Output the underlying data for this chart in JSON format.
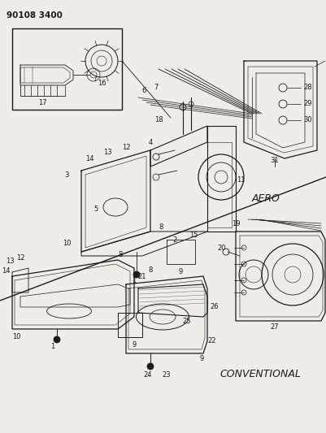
{
  "title": "90108 3400",
  "bg_color": "#f0ede8",
  "line_color": "#1a1a1a",
  "text_color": "#1a1a1a",
  "aero_label": "AERO",
  "conventional_label": "CONVENTIONAL",
  "fig_w": 4.01,
  "fig_h": 5.33,
  "dpi": 100
}
